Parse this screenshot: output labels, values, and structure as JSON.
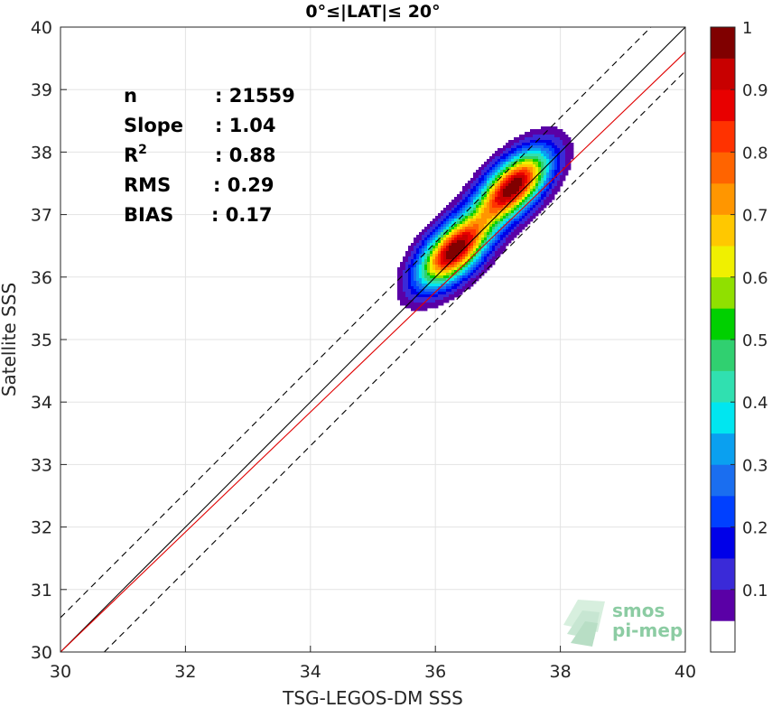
{
  "chart_data": {
    "type": "scatter",
    "title": "0°≤|LAT|≤ 20°",
    "xlabel": "TSG-LEGOS-DM SSS",
    "ylabel": "Satellite SSS",
    "xlim": [
      30,
      40
    ],
    "ylim": [
      30,
      40
    ],
    "xticks": [
      "30",
      "32",
      "34",
      "36",
      "38",
      "40"
    ],
    "yticks": [
      "30",
      "31",
      "32",
      "33",
      "34",
      "35",
      "36",
      "37",
      "38",
      "39",
      "40"
    ],
    "grid": true,
    "stats": [
      {
        "key": "n",
        "value": ": 21559"
      },
      {
        "key": "Slope",
        "value": ": 1.04"
      },
      {
        "key": "R",
        "sup": "2",
        "value": ": 0.88"
      },
      {
        "key": "RMS",
        "value": ": 0.29"
      },
      {
        "key": "BIAS",
        "value": ": 0.17"
      }
    ],
    "lines": [
      {
        "name": "one-to-one",
        "color": "#000000",
        "style": "solid",
        "points": [
          [
            30,
            30
          ],
          [
            40,
            40
          ]
        ]
      },
      {
        "name": "upper-bound",
        "color": "#000000",
        "style": "dashed",
        "points": [
          [
            30,
            30.55
          ],
          [
            39.45,
            40
          ]
        ]
      },
      {
        "name": "lower-bound",
        "color": "#000000",
        "style": "dashed",
        "points": [
          [
            30.7,
            30
          ],
          [
            40,
            39.3
          ]
        ]
      },
      {
        "name": "regression-fit",
        "color": "#e00000",
        "style": "solid",
        "points": [
          [
            30,
            30
          ],
          [
            40,
            39.6
          ]
        ]
      }
    ],
    "density_peaks": [
      {
        "x": 36.3,
        "y": 36.42,
        "level": 1.0
      },
      {
        "x": 37.25,
        "y": 37.45,
        "level": 1.0
      }
    ],
    "contour_levels": [
      0.05,
      0.1,
      0.2,
      0.3,
      0.4,
      0.5,
      0.6,
      0.7,
      0.8,
      0.9
    ],
    "colorbar": {
      "range": [
        0,
        1
      ],
      "ticks": [
        "0.1",
        "0.2",
        "0.3",
        "0.4",
        "0.5",
        "0.6",
        "0.7",
        "0.8",
        "0.9",
        "1"
      ],
      "colors": [
        "#ffffff",
        "#5a00a6",
        "#3a2ad8",
        "#0000e8",
        "#0040ff",
        "#1a6ef0",
        "#0aa0f0",
        "#00e6f0",
        "#30e0b0",
        "#30d070",
        "#00d000",
        "#90e000",
        "#f0f000",
        "#ffc800",
        "#ff9600",
        "#ff6400",
        "#ff3200",
        "#e80000",
        "#c80000",
        "#800000"
      ]
    }
  },
  "watermark": {
    "line1": "smos",
    "line2": "pi-mep"
  }
}
